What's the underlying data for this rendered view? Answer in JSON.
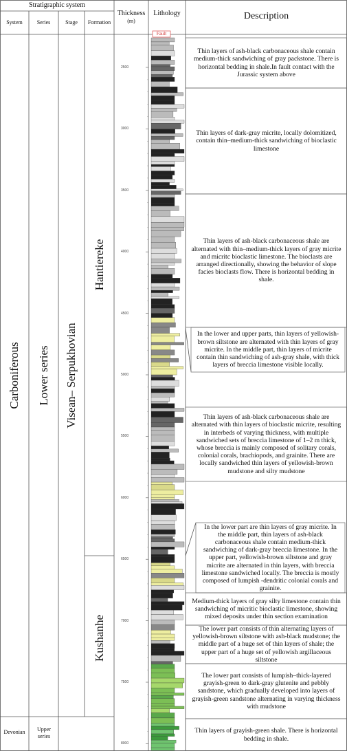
{
  "header": {
    "group": "Stratigraphic system",
    "system": "System",
    "series": "Series",
    "stage": "Stage",
    "formation": "Formation",
    "thickness": "Thickness",
    "thickness_unit": "(m)",
    "lithology": "Lithology",
    "description": "Description"
  },
  "fault": "Fault",
  "systems": [
    "Carboniferous",
    "Devonian"
  ],
  "series": [
    "Lower series",
    "Upper series"
  ],
  "stages": [
    "Visean– Serpukhovian"
  ],
  "formations": [
    "Hantiereke",
    "Kushanhe"
  ],
  "thickness_ticks": [
    "2500",
    "3000",
    "3500",
    "4000",
    "4500",
    "5000",
    "5500",
    "6000",
    "6500",
    "7000",
    "7500",
    "8000"
  ],
  "descriptions": [
    "Thin layers of ash-black carbonaceous shale contain medium-thick sandwiching of gray packstone. There is horizontal bedding in shale.In fault contact with the Jurassic system above",
    "Thin layers of dark-gray micrite, locally dolomitized, contain thin–medium-thick sandwiching of bioclastic limestone",
    "Thin layers of ash-black carbonaceous shale are alternated with thin–medium-thick layers of gray micrite and micritc bioclastic limestone. The bioclasts are arranged directionally, showing the behavior of slope facies bioclasts flow. There is horizontal bedding in shale.",
    "In the lower and upper parts, thin layers of yellowish-brown siltstone are alternated with thin layers of gray micrite. In the middle part, thin layers of micrite contain thin sandwiching of ash-gray shale, with thick layers of breccia limestone visible locally.",
    "Thin layers of ash-black carbonaceous shale are alternated with thin layers of bioclastic micrite, resulting in interbeds of varying thickness, with multiple sandwiched sets of breccia limestone of 1–2 m thick, whose breccia is mainly composed of solitary corals, colonial corals, brachiopods, and grainite. There are locally sandwiched thin layers of yellowish-brown mudstone and silty mudstone",
    "In the lower part are thin layers of gray micrite. In the middle part, thin layers of ash-black carbonaceous shale contain medium-thick sandwiching of dark-gray breccia limestone. In the upper part, yellowish-brown siltstone and gray micrite are alternated in thin layers, with breccia limestone sandwiched locally. The breccia is mostly composed of lumpish -dendritic colonial corals and grainite.",
    "Medium-thick layers of gray silty limestone contain thin sandwiching of micritic bioclastic limestone, showing mixed deposits under thin section examination",
    "The lower part consists of thin alternating layers of yellowish-brown siltstone with ash-black mudstone; the middle part of a huge set of thin layers of shale; the upper part of a huge set of yellowish argillaceous siltstone",
    "The lower part consists of lumpish–thick-layered grayish-green to dark-gray glutenite and pebbly sandstone, which gradually developed into layers of grayish-green sandstone alternating in varying thickness with mudstone",
    "Thin layers of grayish-green shale. There is horizontal bedding in shale."
  ]
}
